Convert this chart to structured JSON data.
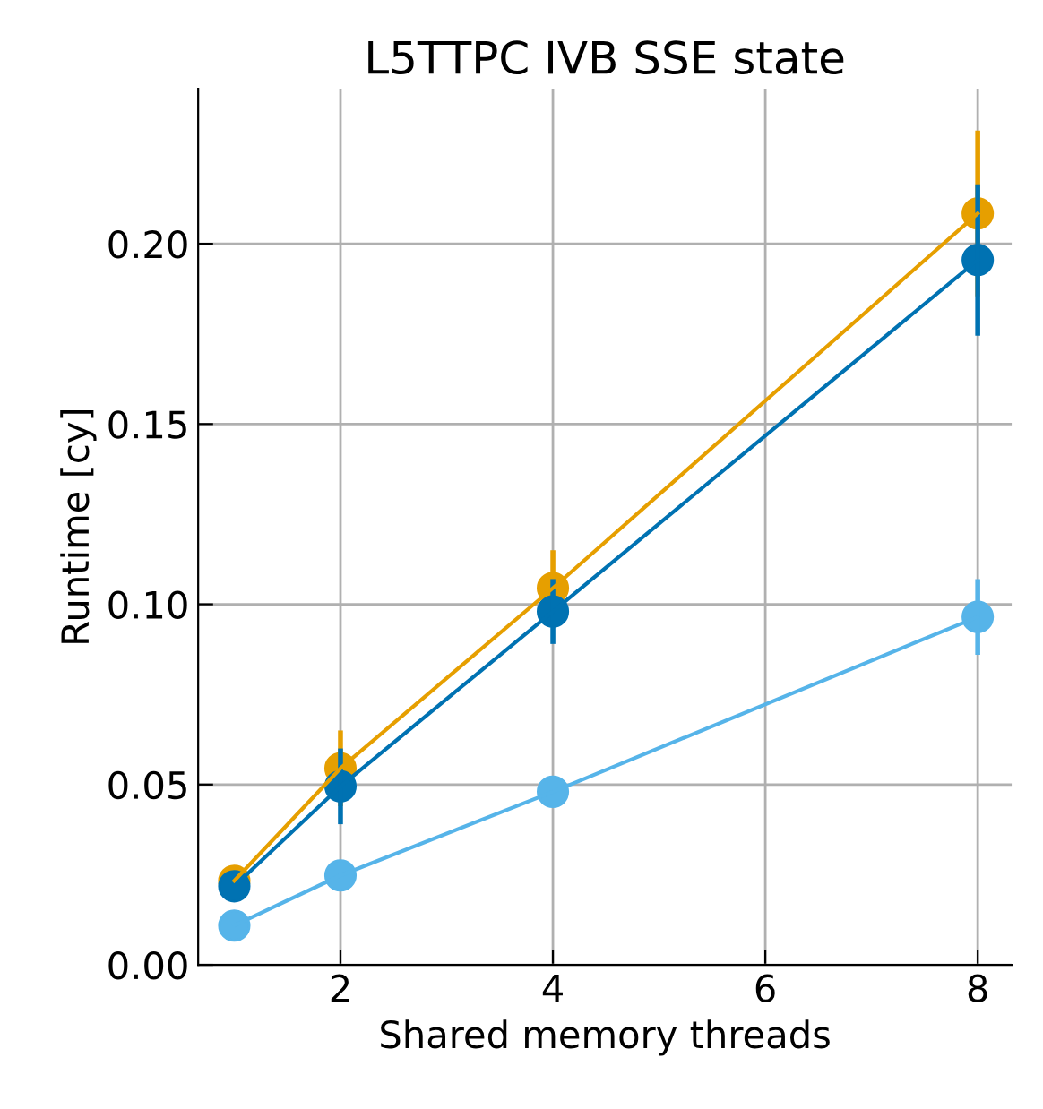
{
  "chart_data": {
    "type": "line",
    "title": "L5TTPC IVB SSE state",
    "xlabel": "Shared memory threads",
    "ylabel": "Runtime [cy]",
    "x": [
      1,
      2,
      4,
      8
    ],
    "series": [
      {
        "color": "#e69f00",
        "values": [
          0.0233,
          0.0545,
          0.1045,
          0.2084
        ],
        "errors": [
          null,
          0.0105,
          0.0105,
          0.023
        ]
      },
      {
        "color": "#0072b2",
        "values": [
          0.0218,
          0.0495,
          0.098,
          0.1955
        ],
        "errors": [
          null,
          0.0105,
          0.009,
          0.021
        ]
      },
      {
        "color": "#56b4e9",
        "values": [
          0.0109,
          0.0248,
          0.048,
          0.0965
        ],
        "errors": [
          null,
          null,
          null,
          0.0105
        ]
      }
    ],
    "xlim": [
      0.66,
      8.32
    ],
    "ylim": [
      0,
      0.243
    ],
    "xticks": [
      2,
      4,
      6,
      8
    ],
    "yticks": [
      {
        "value": 0,
        "label": "0.00"
      },
      {
        "value": 0.05,
        "label": "0.05"
      },
      {
        "value": 0.1,
        "label": "0.10"
      },
      {
        "value": 0.15,
        "label": "0.15"
      },
      {
        "value": 0.2,
        "label": "0.20"
      }
    ],
    "grid": true,
    "marker": "circle",
    "line_style": "solid"
  }
}
